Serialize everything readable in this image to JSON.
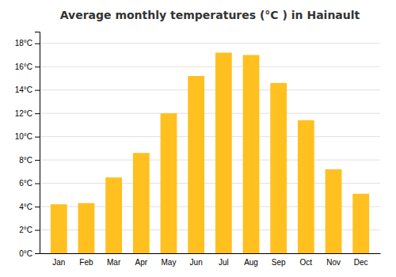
{
  "chart_data": {
    "type": "bar",
    "title": "Average monthly temperatures (°C ) in Hainault",
    "categories": [
      "Jan",
      "Feb",
      "Mar",
      "Apr",
      "May",
      "Jun",
      "Jul",
      "Aug",
      "Sep",
      "Oct",
      "Nov",
      "Dec"
    ],
    "values": [
      4.2,
      4.3,
      6.5,
      8.6,
      12.0,
      15.2,
      17.2,
      17.0,
      14.6,
      11.4,
      7.2,
      5.1
    ],
    "color": "#FFC020",
    "ylim": [
      0,
      19
    ],
    "yticks": [
      {
        "value": 0,
        "label": "0°C"
      },
      {
        "value": 2,
        "label": "2°C"
      },
      {
        "value": 4,
        "label": "4°C"
      },
      {
        "value": 6,
        "label": "6°C"
      },
      {
        "value": 8,
        "label": "8°C"
      },
      {
        "value": 10,
        "label": "10°C"
      },
      {
        "value": 12,
        "label": "12°C"
      },
      {
        "value": 14,
        "label": "14°C"
      },
      {
        "value": 16,
        "label": "16°C"
      },
      {
        "value": 18,
        "label": "18°C"
      }
    ],
    "grid": true
  }
}
